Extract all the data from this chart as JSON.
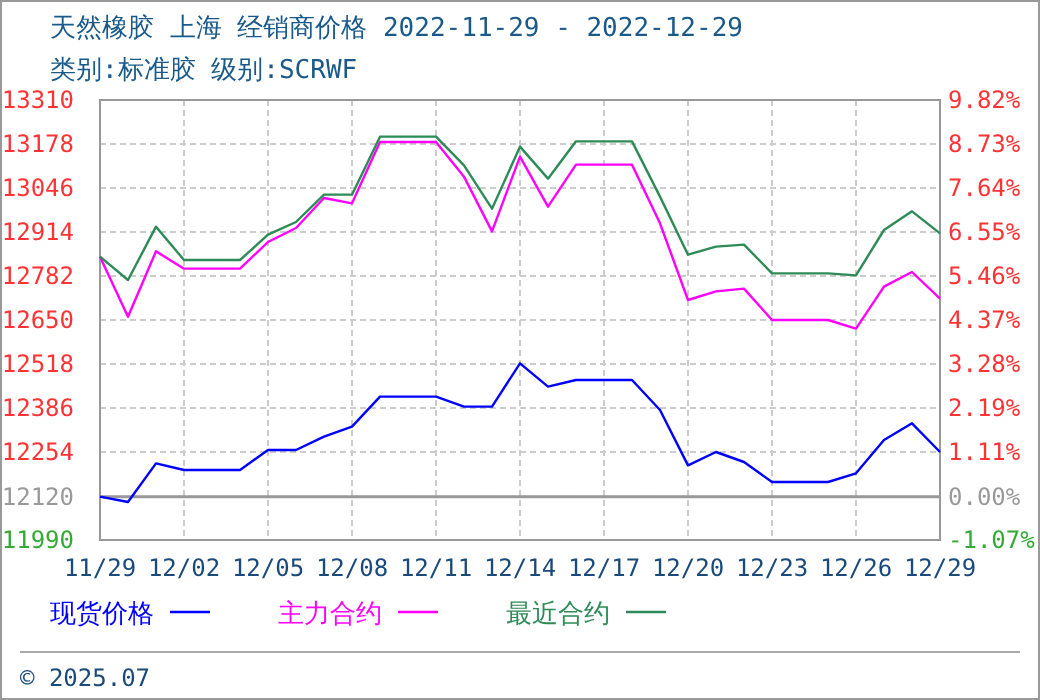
{
  "chart_data": {
    "type": "line",
    "title": "天然橡胶 上海 经销商价格 2022-11-29 - 2022-12-29",
    "subtitle": "类别:标准胶 级别:SCRWF",
    "x": [
      "2022-11-29",
      "2022-11-30",
      "2022-12-01",
      "2022-12-02",
      "2022-12-03",
      "2022-12-04",
      "2022-12-05",
      "2022-12-06",
      "2022-12-07",
      "2022-12-08",
      "2022-12-09",
      "2022-12-10",
      "2022-12-11",
      "2022-12-12",
      "2022-12-13",
      "2022-12-14",
      "2022-12-15",
      "2022-12-16",
      "2022-12-17",
      "2022-12-18",
      "2022-12-19",
      "2022-12-20",
      "2022-12-21",
      "2022-12-22",
      "2022-12-23",
      "2022-12-24",
      "2022-12-25",
      "2022-12-26",
      "2022-12-27",
      "2022-12-28",
      "2022-12-29"
    ],
    "series": [
      {
        "name": "现货价格",
        "color": "#0000ff",
        "values": [
          12120,
          12104,
          12220,
          12200,
          12200,
          12200,
          12260,
          12260,
          12300,
          12330,
          12420,
          12420,
          12420,
          12390,
          12390,
          12520,
          12450,
          12470,
          12470,
          12470,
          12380,
          12214,
          12254,
          12224,
          12164,
          12164,
          12164,
          12190,
          12290,
          12340,
          12254
        ]
      },
      {
        "name": "主力合约",
        "color": "#ff00ff",
        "values": [
          12840,
          12660,
          12856,
          12804,
          12804,
          12804,
          12884,
          12926,
          13016,
          13000,
          13184,
          13184,
          13184,
          13080,
          12916,
          13140,
          12990,
          13116,
          13116,
          13116,
          12940,
          12710,
          12736,
          12744,
          12650,
          12650,
          12650,
          12624,
          12750,
          12794,
          12714
        ]
      },
      {
        "name": "最近合约",
        "color": "#2e8b57",
        "values": [
          12840,
          12770,
          12930,
          12830,
          12830,
          12830,
          12906,
          12944,
          13026,
          13026,
          13200,
          13200,
          13200,
          13114,
          12984,
          13170,
          13074,
          13186,
          13186,
          13186,
          13020,
          12846,
          12870,
          12876,
          12790,
          12790,
          12790,
          12784,
          12920,
          12976,
          12910
        ]
      }
    ],
    "xlim": [
      "2022-11-29",
      "2022-12-29"
    ],
    "xticks": [
      {
        "value": "2022-11-29",
        "label": "11/29"
      },
      {
        "value": "2022-12-02",
        "label": "12/02"
      },
      {
        "value": "2022-12-05",
        "label": "12/05"
      },
      {
        "value": "2022-12-08",
        "label": "12/08"
      },
      {
        "value": "2022-12-11",
        "label": "12/11"
      },
      {
        "value": "2022-12-14",
        "label": "12/14"
      },
      {
        "value": "2022-12-17",
        "label": "12/17"
      },
      {
        "value": "2022-12-20",
        "label": "12/20"
      },
      {
        "value": "2022-12-23",
        "label": "12/23"
      },
      {
        "value": "2022-12-26",
        "label": "12/26"
      },
      {
        "value": "2022-12-29",
        "label": "12/29"
      }
    ],
    "ylim": [
      11990,
      13310
    ],
    "yticks": [
      11990,
      12120,
      12254,
      12386,
      12518,
      12650,
      12782,
      12914,
      13046,
      13178,
      13310
    ],
    "y2lim": [
      -1.07,
      9.82
    ],
    "y2ticks": [
      {
        "value": -1.07,
        "label": "-1.07%"
      },
      {
        "value": 0,
        "label": "0.00%"
      },
      {
        "value": 1.11,
        "label": "1.11%"
      },
      {
        "value": 2.19,
        "label": "2.19%"
      },
      {
        "value": 3.28,
        "label": "3.28%"
      },
      {
        "value": 4.37,
        "label": "4.37%"
      },
      {
        "value": 5.46,
        "label": "5.46%"
      },
      {
        "value": 6.55,
        "label": "6.55%"
      },
      {
        "value": 7.64,
        "label": "7.64%"
      },
      {
        "value": 8.73,
        "label": "8.73%"
      },
      {
        "value": 9.82,
        "label": "9.82%"
      }
    ],
    "ref_lines": [
      {
        "axis": "y",
        "value": 12120,
        "color": "#999999"
      }
    ],
    "grid": true,
    "line_style": "solid",
    "marker": "none",
    "legend": "bottom",
    "annotations": [
      "© 2025.07"
    ]
  }
}
